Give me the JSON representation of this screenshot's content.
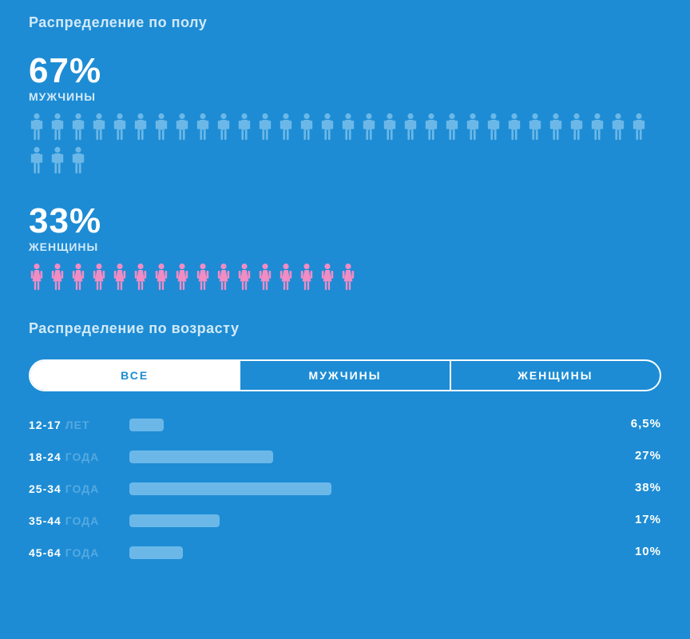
{
  "colors": {
    "background": "#1d8cd4",
    "text_primary": "#ffffff",
    "text_muted": "#d2e9f8",
    "text_faded": "#55a9e0",
    "male_icon": "#6bb8e8",
    "female_icon": "#f18cc4",
    "bar_fill": "#6bb8e8",
    "tab_active_bg": "#ffffff",
    "tab_active_text": "#1d8cd4",
    "tab_border": "#ffffff"
  },
  "gender_section": {
    "title": "Распределение по полу",
    "male": {
      "pct_label": "67%",
      "pct_value": 67,
      "label": "МУЖЧИНЫ",
      "icon_count": 33,
      "icon_color": "#6bb8e8"
    },
    "female": {
      "pct_label": "33%",
      "pct_value": 33,
      "label": "ЖЕНЩИНЫ",
      "icon_count": 16,
      "icon_color": "#f18cc4"
    }
  },
  "age_section": {
    "title": "Распределение по возрасту",
    "tabs": [
      {
        "label": "ВСЕ",
        "active": true
      },
      {
        "label": "МУЖЧИНЫ",
        "active": false
      },
      {
        "label": "ЖЕНЩИНЫ",
        "active": false
      }
    ],
    "bar_color": "#6bb8e8",
    "bar_max_pct": 100,
    "rows": [
      {
        "range": "12-17",
        "unit": "ЛЕТ",
        "value": 6.5,
        "value_label": "6,5%"
      },
      {
        "range": "18-24",
        "unit": "ГОДА",
        "value": 27,
        "value_label": "27%"
      },
      {
        "range": "25-34",
        "unit": "ГОДА",
        "value": 38,
        "value_label": "38%"
      },
      {
        "range": "35-44",
        "unit": "ГОДА",
        "value": 17,
        "value_label": "17%"
      },
      {
        "range": "45-64",
        "unit": "ГОДА",
        "value": 10,
        "value_label": "10%"
      }
    ]
  }
}
